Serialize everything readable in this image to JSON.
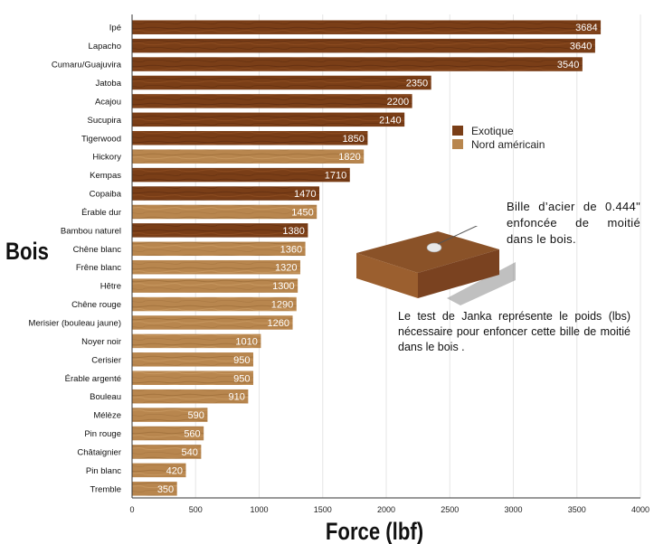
{
  "chart_data": {
    "type": "bar",
    "orientation": "horizontal",
    "xlabel": "Force (lbf)",
    "ylabel": "Bois",
    "xlim": [
      0,
      4000
    ],
    "xticks": [
      0,
      500,
      1000,
      1500,
      2000,
      2500,
      3000,
      3500,
      4000
    ],
    "grid": true,
    "legend_position": "right",
    "categories": [
      "Ipé",
      "Lapacho",
      "Cumaru/Guajuvira",
      "Jatoba",
      "Acajou",
      "Sucupira",
      "Tigerwood",
      "Hickory",
      "Kempas",
      "Copaiba",
      "Érable dur",
      "Bambou naturel",
      "Chêne blanc",
      "Frêne blanc",
      "Hêtre",
      "Chêne rouge",
      "Merisier (bouleau jaune)",
      "Noyer noir",
      "Cerisier",
      "Érable argenté",
      "Bouleau",
      "Mélèze",
      "Pin rouge",
      "Châtaignier",
      "Pin blanc",
      "Tremble"
    ],
    "values": [
      3684,
      3640,
      3540,
      2350,
      2200,
      2140,
      1850,
      1820,
      1710,
      1470,
      1450,
      1380,
      1360,
      1320,
      1300,
      1290,
      1260,
      1010,
      950,
      950,
      910,
      590,
      560,
      540,
      420,
      350
    ],
    "groups": [
      "Exotique",
      "Exotique",
      "Exotique",
      "Exotique",
      "Exotique",
      "Exotique",
      "Exotique",
      "Nord américain",
      "Exotique",
      "Exotique",
      "Nord américain",
      "Exotique",
      "Nord américain",
      "Nord américain",
      "Nord américain",
      "Nord américain",
      "Nord américain",
      "Nord américain",
      "Nord américain",
      "Nord américain",
      "Nord américain",
      "Nord américain",
      "Nord américain",
      "Nord américain",
      "Nord américain",
      "Nord américain"
    ],
    "series": [
      {
        "name": "Exotique",
        "color": "#7a3e17"
      },
      {
        "name": "Nord américain",
        "color": "#b8864e"
      }
    ]
  },
  "annotations": {
    "ball": "Bille d’acier de 0.444\" enfoncée de moitié dans le bois.",
    "janka": "Le test de Janka représente le poids (lbs) nécessaire pour enfoncer cette bille de moitié dans le bois ."
  }
}
